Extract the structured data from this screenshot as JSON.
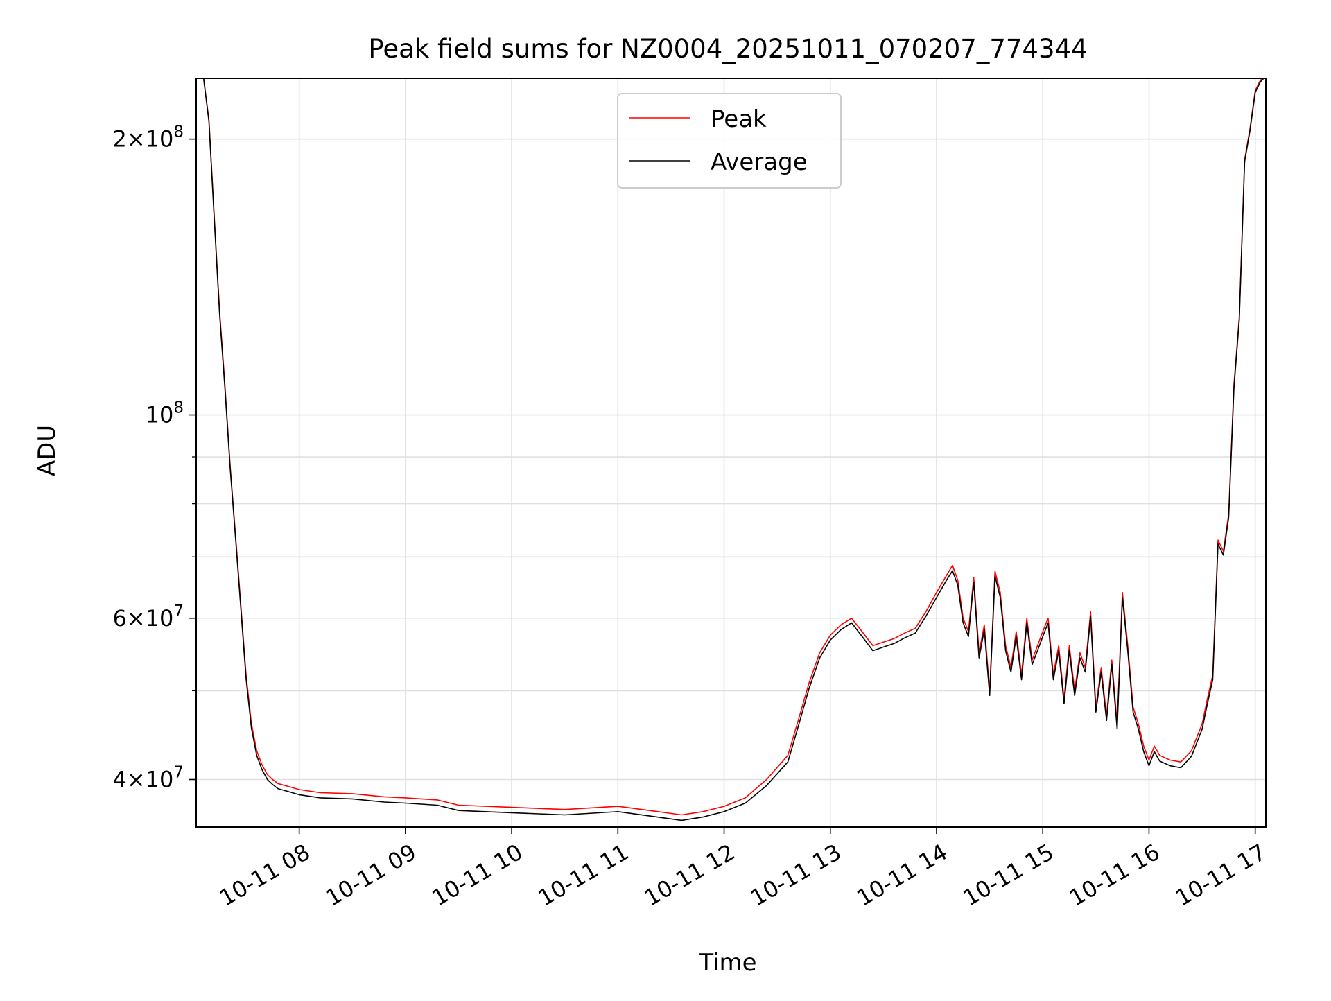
{
  "chart_data": {
    "type": "line",
    "title": "Peak field sums for NZ0004_20251011_070207_774344",
    "xlabel": "Time",
    "ylabel": "ADU",
    "yscale": "log",
    "ylim": [
      35500000,
      233000000
    ],
    "xlim": [
      "10-11 07:02",
      "10-11 17:06"
    ],
    "grid": true,
    "legend_position": "top-center",
    "x_ticks": [
      "10-11 08",
      "10-11 09",
      "10-11 10",
      "10-11 11",
      "10-11 12",
      "10-11 13",
      "10-11 14",
      "10-11 15",
      "10-11 16",
      "10-11 17"
    ],
    "y_tick_labels": [
      {
        "value": 40000000,
        "mantissa": "4",
        "exponent": "7"
      },
      {
        "value": 60000000,
        "mantissa": "6",
        "exponent": "7"
      },
      {
        "value": 100000000,
        "mantissa": "",
        "exponent": "8"
      },
      {
        "value": 200000000,
        "mantissa": "2",
        "exponent": "8"
      }
    ],
    "x_units": "hours (time of day on 10-11)",
    "x": [
      7.03,
      7.1,
      7.15,
      7.2,
      7.25,
      7.3,
      7.35,
      7.4,
      7.45,
      7.5,
      7.55,
      7.6,
      7.65,
      7.7,
      7.75,
      7.8,
      7.9,
      8.0,
      8.2,
      8.5,
      8.8,
      9.0,
      9.3,
      9.5,
      10.0,
      10.5,
      11.0,
      11.3,
      11.6,
      11.8,
      12.0,
      12.2,
      12.4,
      12.6,
      12.7,
      12.8,
      12.9,
      13.0,
      13.1,
      13.2,
      13.3,
      13.4,
      13.5,
      13.6,
      13.7,
      13.8,
      13.9,
      14.0,
      14.1,
      14.15,
      14.2,
      14.25,
      14.3,
      14.35,
      14.4,
      14.45,
      14.5,
      14.55,
      14.6,
      14.65,
      14.7,
      14.75,
      14.8,
      14.85,
      14.9,
      14.95,
      15.0,
      15.05,
      15.1,
      15.15,
      15.2,
      15.25,
      15.3,
      15.35,
      15.4,
      15.45,
      15.5,
      15.55,
      15.6,
      15.65,
      15.7,
      15.75,
      15.8,
      15.85,
      15.9,
      15.95,
      16.0,
      16.05,
      16.1,
      16.2,
      16.3,
      16.4,
      16.5,
      16.55,
      16.6,
      16.65,
      16.7,
      16.75,
      16.8,
      16.85,
      16.9,
      16.95,
      17.0,
      17.05,
      17.08
    ],
    "series": [
      {
        "name": "Peak",
        "color": "#ff0000",
        "values": [
          233000000,
          233000000,
          210000000,
          165000000,
          130000000,
          108000000,
          88000000,
          74000000,
          62000000,
          52000000,
          46000000,
          43000000,
          41500000,
          40500000,
          40000000,
          39600000,
          39300000,
          39000000,
          38700000,
          38600000,
          38300000,
          38200000,
          38000000,
          37500000,
          37300000,
          37100000,
          37400000,
          37000000,
          36600000,
          36900000,
          37400000,
          38200000,
          40000000,
          42500000,
          46500000,
          51000000,
          55000000,
          57500000,
          59000000,
          60000000,
          58000000,
          56000000,
          56500000,
          57000000,
          57800000,
          58500000,
          61000000,
          64000000,
          67000000,
          68500000,
          66000000,
          60000000,
          58000000,
          66500000,
          55000000,
          59000000,
          50000000,
          67500000,
          64000000,
          56000000,
          53000000,
          58000000,
          52000000,
          60000000,
          54000000,
          56000000,
          58000000,
          60000000,
          52000000,
          56000000,
          49000000,
          56000000,
          50000000,
          55000000,
          53000000,
          61000000,
          48000000,
          53000000,
          47000000,
          54000000,
          46000000,
          64000000,
          56000000,
          48000000,
          46000000,
          43500000,
          42000000,
          43500000,
          42500000,
          42000000,
          41800000,
          43000000,
          46000000,
          49000000,
          52000000,
          73000000,
          71000000,
          78000000,
          108000000,
          128000000,
          190000000,
          205000000,
          226000000,
          232000000,
          233000000
        ]
      },
      {
        "name": "Average",
        "color": "#000000",
        "values": [
          233000000,
          233000000,
          209000000,
          164000000,
          129000000,
          107000000,
          87500000,
          73500000,
          61500000,
          51500000,
          45500000,
          42500000,
          41000000,
          40000000,
          39500000,
          39100000,
          38800000,
          38500000,
          38200000,
          38100000,
          37800000,
          37700000,
          37500000,
          37000000,
          36800000,
          36600000,
          36900000,
          36500000,
          36100000,
          36400000,
          36900000,
          37700000,
          39400000,
          41800000,
          45800000,
          50300000,
          54300000,
          56800000,
          58300000,
          59300000,
          57300000,
          55300000,
          55800000,
          56300000,
          57100000,
          57800000,
          60300000,
          63200000,
          66200000,
          67600000,
          65200000,
          59300000,
          57300000,
          65700000,
          54300000,
          58300000,
          49400000,
          66700000,
          63200000,
          55300000,
          52400000,
          57300000,
          51400000,
          59300000,
          53400000,
          55300000,
          57300000,
          59300000,
          51400000,
          55300000,
          48400000,
          55300000,
          49400000,
          54300000,
          52400000,
          60300000,
          47400000,
          52400000,
          46400000,
          53400000,
          45400000,
          63200000,
          55300000,
          47400000,
          45400000,
          42900000,
          41400000,
          42900000,
          41900000,
          41400000,
          41200000,
          42400000,
          45400000,
          48400000,
          51400000,
          72300000,
          70300000,
          77300000,
          107000000,
          127000000,
          189000000,
          204000000,
          225000000,
          231000000,
          233000000
        ]
      }
    ]
  }
}
